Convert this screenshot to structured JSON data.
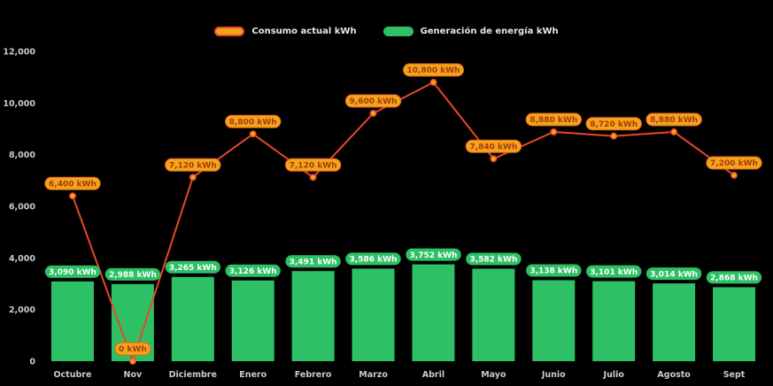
{
  "background_color": "#000000",
  "legend": {
    "position": "top",
    "items": [
      {
        "label": "Consumo actual kWh"
      },
      {
        "label": "Generación de energía kWh"
      }
    ]
  },
  "chart_data": {
    "type": "combo",
    "categories": [
      "Octubre",
      "Nov",
      "Diciembre",
      "Enero",
      "Febrero",
      "Marzo",
      "Abril",
      "Mayo",
      "Junio",
      "Julio",
      "Agosto",
      "Sept"
    ],
    "series": [
      {
        "name": "Consumo actual kWh",
        "type": "line",
        "color": "#E8472B",
        "marker_color": "#F5A31A",
        "label_bg": "#F5A31A",
        "label_border": "#E2641E",
        "label_text_color": "#A33B10",
        "values": [
          6400,
          0,
          7120,
          8800,
          7120,
          9600,
          10800,
          7840,
          8880,
          8720,
          8880,
          7200
        ],
        "labels": [
          "6,400 kWh",
          "0 kWh",
          "7,120 kWh",
          "8,800 kWh",
          "7,120 kWh",
          "9,600 kWh",
          "10,800 kWh",
          "7,840 kWh",
          "8,880 kWh",
          "8,720 kWh",
          "8,880 kWh",
          "7,200 kWh"
        ]
      },
      {
        "name": "Generación de energía kWh",
        "type": "bar",
        "color": "#2DC064",
        "label_bg": "#2DC064",
        "label_text_color": "#FFFFFF",
        "values": [
          3090,
          2988,
          3265,
          3126,
          3491,
          3586,
          3752,
          3582,
          3138,
          3101,
          3014,
          2868
        ],
        "labels": [
          "3,090 kWh",
          "2,988 kWh",
          "3,265 kWh",
          "3,126 kWh",
          "3,491 kWh",
          "3,586 kWh",
          "3,752 kWh",
          "3,582 kWh",
          "3,138 kWh",
          "3,101 kWh",
          "3,014 kWh",
          "2,868 kWh"
        ]
      }
    ],
    "ylim": [
      0,
      12000
    ],
    "y_ticks": [
      "0",
      "2,000",
      "4,000",
      "6,000",
      "8,000",
      "10,000",
      "12,000"
    ],
    "y_tick_values": [
      0,
      2000,
      4000,
      6000,
      8000,
      10000,
      12000
    ],
    "grid": false,
    "legend_position": "top",
    "axis_text_color": "#C7CBD1"
  }
}
